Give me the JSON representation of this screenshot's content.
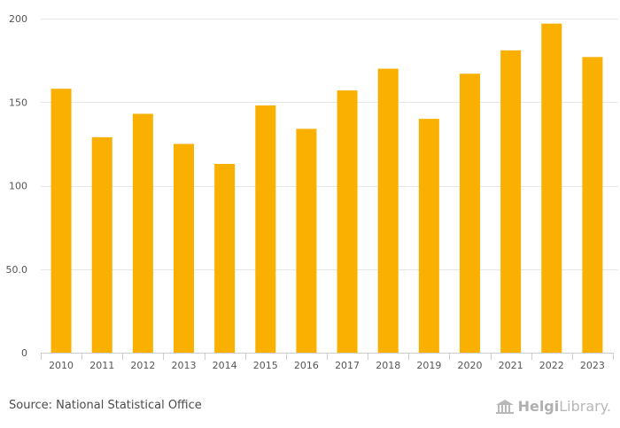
{
  "chart_data": {
    "type": "bar",
    "title": "",
    "xlabel": "",
    "ylabel": "",
    "categories": [
      "2010",
      "2011",
      "2012",
      "2013",
      "2014",
      "2015",
      "2016",
      "2017",
      "2018",
      "2019",
      "2020",
      "2021",
      "2022",
      "2023"
    ],
    "values": [
      158,
      129,
      143,
      125,
      113,
      148,
      134,
      157,
      170,
      140,
      167,
      181,
      197,
      177
    ],
    "ylim": [
      0,
      200
    ],
    "yticks": [
      0,
      50,
      100,
      150,
      200
    ],
    "ytick_labels": [
      "0",
      "50.0",
      "100",
      "150",
      "200"
    ],
    "grid": true,
    "bar_color": "#f9b000"
  },
  "footer": {
    "source": "Source: National Statistical Office",
    "brand_bold": "Helgi",
    "brand_rest": "Library."
  },
  "colors": {
    "grid": "#e6e6e6",
    "axis_text": "#555555",
    "logo": "#b8b8b8"
  }
}
